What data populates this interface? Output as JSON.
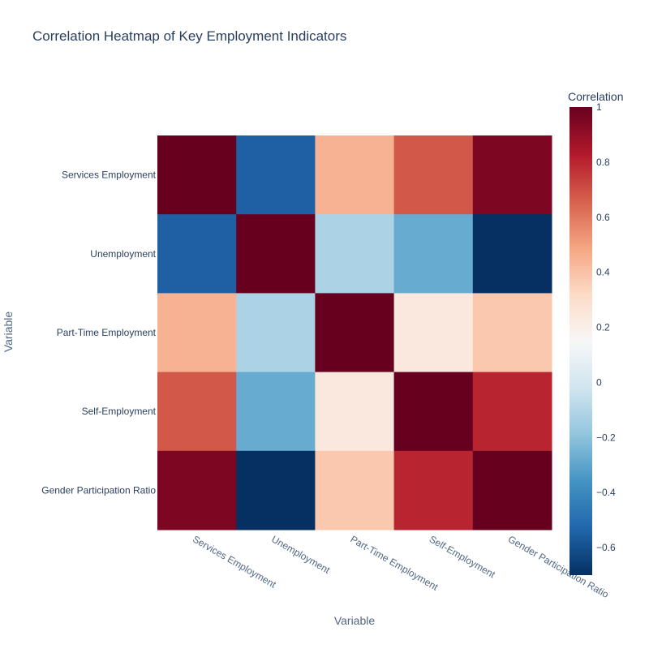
{
  "chart_data": {
    "type": "heatmap",
    "title": "Correlation Heatmap of Key Employment Indicators",
    "xlabel": "Variable",
    "ylabel": "Variable",
    "x": [
      "Services Employment",
      "Unemployment",
      "Part-Time Employment",
      "Self-Employment",
      "Gender Participation Ratio"
    ],
    "y": [
      "Services Employment",
      "Unemployment",
      "Part-Time Employment",
      "Self-Employment",
      "Gender Participation Ratio"
    ],
    "z": [
      [
        1.0,
        -0.55,
        0.45,
        0.68,
        0.95
      ],
      [
        -0.55,
        1.0,
        -0.12,
        -0.28,
        -0.7
      ],
      [
        0.45,
        -0.12,
        1.0,
        0.24,
        0.38
      ],
      [
        0.68,
        -0.28,
        0.24,
        1.0,
        0.8
      ],
      [
        0.95,
        -0.7,
        0.38,
        0.8,
        1.0
      ]
    ],
    "zmin": -0.7,
    "zmax": 1.0,
    "colorscale": "RdBu_r",
    "colorbar": {
      "title": "Correlation",
      "ticks": [
        "1",
        "0.8",
        "0.6",
        "0.4",
        "0.2",
        "0",
        "−0.2",
        "−0.4",
        "−0.6"
      ],
      "tick_values": [
        1,
        0.8,
        0.6,
        0.4,
        0.2,
        0,
        -0.2,
        -0.4,
        -0.6
      ]
    },
    "colors": [
      "#053061",
      "#2166ac",
      "#4393c3",
      "#92c5de",
      "#d1e5f0",
      "#f7f7f7",
      "#fddbc7",
      "#f4a582",
      "#d6604d",
      "#b2182b",
      "#67001f"
    ]
  }
}
